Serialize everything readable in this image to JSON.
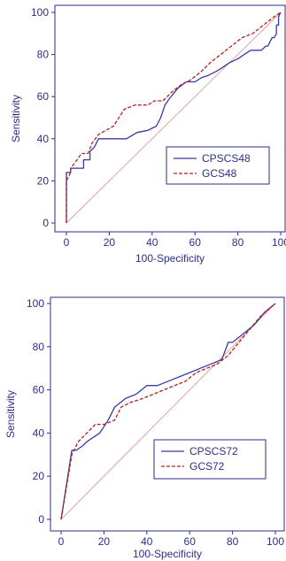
{
  "chart_data": [
    {
      "type": "line",
      "xlabel": "100-Specificity",
      "ylabel": "Sensitivity",
      "xlim": [
        0,
        100
      ],
      "ylim": [
        0,
        100
      ],
      "xticks": [
        "0",
        "20",
        "40",
        "60",
        "80",
        "100"
      ],
      "yticks": [
        "0",
        "20",
        "40",
        "60",
        "80",
        "100"
      ],
      "grid": false,
      "legend_position": "bottom-right",
      "reference_line": true,
      "series": [
        {
          "name": "CPSCS48",
          "style": "solid",
          "color": "#3a3aa0",
          "x": [
            0,
            0,
            2,
            2,
            5,
            8,
            8,
            11,
            11,
            13,
            15,
            28,
            33,
            38,
            42,
            44,
            46,
            48,
            52,
            56,
            60,
            63,
            66,
            70,
            73,
            76,
            80,
            83,
            86,
            89,
            91,
            93,
            94,
            95,
            96,
            97,
            98,
            98,
            99,
            99,
            100
          ],
          "y": [
            0,
            24,
            24,
            26,
            26,
            26,
            30,
            30,
            34,
            36,
            40,
            40,
            43,
            44,
            46,
            50,
            56,
            59,
            64,
            67,
            67,
            69,
            70,
            72,
            74,
            76,
            78,
            80,
            82,
            82,
            82,
            84,
            84,
            86,
            88,
            88,
            90,
            94,
            94,
            98,
            100
          ]
        },
        {
          "name": "GCS48",
          "style": "dashed",
          "color": "#b52020",
          "x": [
            0,
            0,
            2,
            2,
            5,
            7,
            10,
            12,
            15,
            22,
            27,
            32,
            38,
            41,
            45,
            49,
            54,
            58,
            63,
            67,
            72,
            77,
            82,
            87,
            92,
            97,
            100
          ],
          "y": [
            0,
            20,
            24,
            26,
            30,
            33,
            33,
            38,
            42,
            46,
            54,
            56,
            56,
            58,
            58,
            62,
            66,
            68,
            72,
            76,
            80,
            84,
            88,
            90,
            94,
            98,
            100
          ]
        }
      ]
    },
    {
      "type": "line",
      "xlabel": "100-Specificity",
      "ylabel": "Sensitivity",
      "xlim": [
        0,
        100
      ],
      "ylim": [
        0,
        100
      ],
      "xticks": [
        "0",
        "20",
        "40",
        "60",
        "80",
        "100"
      ],
      "yticks": [
        "0",
        "20",
        "40",
        "60",
        "80",
        "100"
      ],
      "grid": false,
      "legend_position": "bottom-right",
      "reference_line": true,
      "series": [
        {
          "name": "CPSCS72",
          "style": "solid",
          "color": "#3a3aa0",
          "x": [
            0,
            5,
            7,
            10,
            12,
            15,
            18,
            22,
            25,
            30,
            35,
            40,
            45,
            50,
            55,
            60,
            65,
            70,
            75,
            78,
            80,
            85,
            90,
            95,
            100
          ],
          "y": [
            0,
            32,
            32,
            34,
            36,
            38,
            40,
            46,
            52,
            56,
            58,
            62,
            62,
            64,
            66,
            68,
            70,
            72,
            74,
            82,
            82,
            86,
            90,
            96,
            100
          ]
        },
        {
          "name": "GCS72",
          "style": "dashed",
          "color": "#b52020",
          "x": [
            0,
            5,
            8,
            12,
            16,
            20,
            25,
            28,
            32,
            38,
            43,
            48,
            53,
            58,
            63,
            68,
            73,
            78,
            83,
            88,
            93,
            100
          ],
          "y": [
            0,
            30,
            36,
            40,
            44,
            44,
            46,
            52,
            54,
            56,
            58,
            60,
            62,
            64,
            68,
            70,
            72,
            76,
            82,
            88,
            94,
            100
          ]
        }
      ]
    }
  ]
}
